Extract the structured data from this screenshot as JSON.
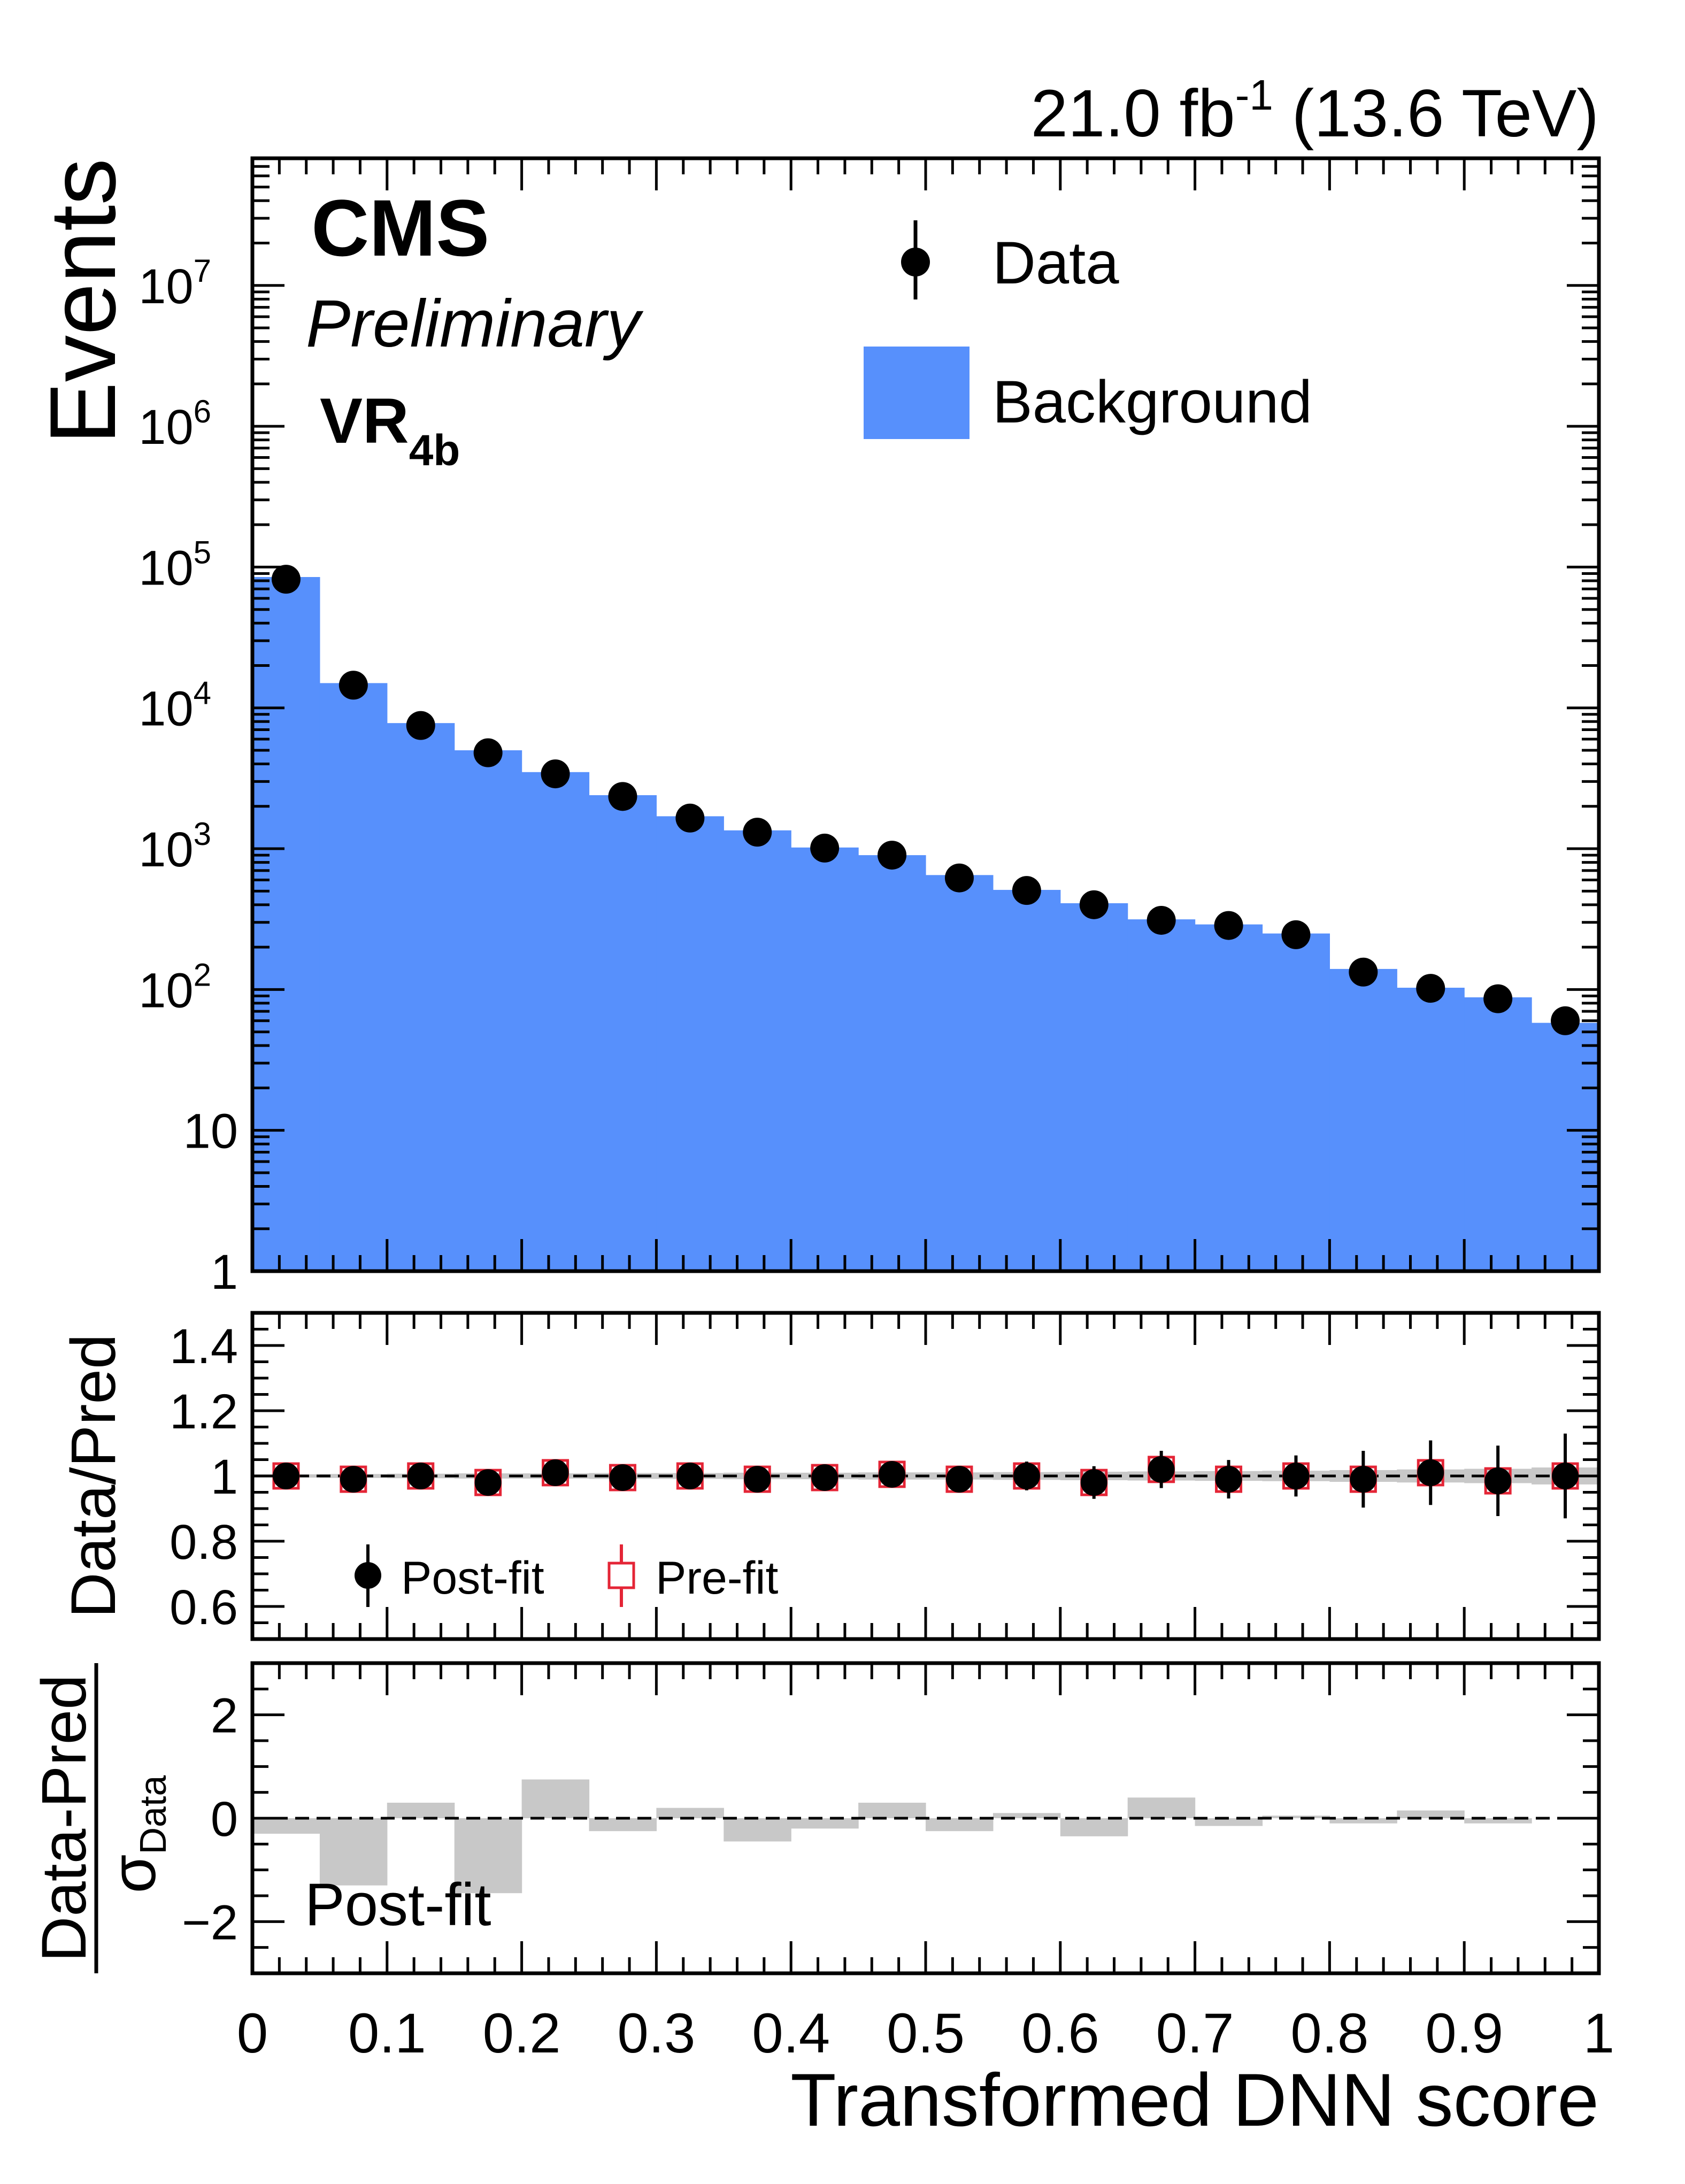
{
  "header": {
    "lumi_value": "21.0 fb",
    "lumi_exponent": "-1",
    "energy": " (13.6 TeV)"
  },
  "labels": {
    "experiment": "CMS",
    "status": "Preliminary",
    "region_main": "VR",
    "region_sub": "4b"
  },
  "colors": {
    "background_fill": "#5790fc",
    "data_marker": "#000000",
    "prefit_marker": "#e42536",
    "uncertainty_band": "#c8c8c8",
    "pull_fill": "#c8c8c8"
  },
  "chart_data": [
    {
      "panel": "main",
      "type": "bar",
      "ylabel": "Events",
      "yscale": "log",
      "xlim": [
        0,
        1
      ],
      "ylim": [
        1,
        80000000
      ],
      "ytick_labels": [
        {
          "value": 1,
          "mantissa": "1",
          "exp": ""
        },
        {
          "value": 10,
          "mantissa": "10",
          "exp": ""
        },
        {
          "value": 100,
          "mantissa": "10",
          "exp": "2"
        },
        {
          "value": 1000,
          "mantissa": "10",
          "exp": "3"
        },
        {
          "value": 10000,
          "mantissa": "10",
          "exp": "4"
        },
        {
          "value": 100000,
          "mantissa": "10",
          "exp": "5"
        },
        {
          "value": 1000000,
          "mantissa": "10",
          "exp": "6"
        },
        {
          "value": 10000000,
          "mantissa": "10",
          "exp": "7"
        }
      ],
      "bin_edges": [
        0,
        0.05,
        0.1,
        0.15,
        0.2,
        0.25,
        0.3,
        0.35,
        0.4,
        0.45,
        0.5,
        0.55,
        0.6,
        0.65,
        0.7,
        0.75,
        0.8,
        0.85,
        0.9,
        0.95,
        1.0
      ],
      "series": [
        {
          "name": "Background",
          "kind": "histogram",
          "values": [
            85000,
            15000,
            7800,
            5000,
            3500,
            2400,
            1700,
            1350,
            1020,
            900,
            650,
            510,
            410,
            315,
            290,
            250,
            140,
            103,
            88,
            58
          ]
        },
        {
          "name": "Data",
          "kind": "points",
          "x": [
            0.025,
            0.075,
            0.125,
            0.175,
            0.225,
            0.275,
            0.325,
            0.375,
            0.425,
            0.475,
            0.525,
            0.575,
            0.625,
            0.675,
            0.725,
            0.775,
            0.825,
            0.875,
            0.925,
            0.975
          ],
          "values": [
            82000,
            14500,
            7500,
            4800,
            3400,
            2350,
            1650,
            1310,
            1010,
            900,
            620,
            505,
            400,
            310,
            285,
            245,
            133,
            102,
            86,
            60
          ]
        }
      ],
      "legend": {
        "placement": "top-right",
        "entries": [
          "Data",
          "Background"
        ]
      }
    },
    {
      "panel": "ratio",
      "type": "scatter",
      "ylabel": "Data/Pred",
      "xlim": [
        0,
        1
      ],
      "ylim": [
        0.5,
        1.5
      ],
      "yticks": [
        0.6,
        0.8,
        1,
        1.2,
        1.4
      ],
      "ytick_labels": [
        "0.6",
        "0.8",
        "1",
        "1.2",
        "1.4"
      ],
      "reference_line": 1,
      "x": [
        0.025,
        0.075,
        0.125,
        0.175,
        0.225,
        0.275,
        0.325,
        0.375,
        0.425,
        0.475,
        0.525,
        0.575,
        0.625,
        0.675,
        0.725,
        0.775,
        0.825,
        0.875,
        0.925,
        0.975
      ],
      "band_halfwidth": [
        0.005,
        0.006,
        0.007,
        0.008,
        0.008,
        0.009,
        0.009,
        0.01,
        0.01,
        0.011,
        0.011,
        0.012,
        0.013,
        0.014,
        0.015,
        0.016,
        0.018,
        0.02,
        0.022,
        0.026
      ],
      "series": [
        {
          "name": "Post-fit",
          "values": [
            1.0,
            0.99,
            1.0,
            0.98,
            1.01,
            0.995,
            1.0,
            0.99,
            0.995,
            1.005,
            0.99,
            1.0,
            0.98,
            1.02,
            0.99,
            1.0,
            0.99,
            1.01,
            0.985,
            1.0
          ],
          "errors": [
            0.003,
            0.008,
            0.011,
            0.014,
            0.017,
            0.02,
            0.025,
            0.027,
            0.031,
            0.033,
            0.04,
            0.044,
            0.05,
            0.057,
            0.059,
            0.063,
            0.087,
            0.099,
            0.108,
            0.13
          ]
        },
        {
          "name": "Pre-fit",
          "values": [
            1.0,
            0.99,
            1.0,
            0.98,
            1.01,
            0.995,
            1.0,
            0.99,
            0.995,
            1.005,
            0.99,
            1.0,
            0.98,
            1.02,
            0.99,
            1.0,
            0.99,
            1.01,
            0.985,
            1.0
          ]
        }
      ],
      "legend": {
        "placement": "bottom-left",
        "entries": [
          "Post-fit",
          "Pre-fit"
        ]
      }
    },
    {
      "panel": "pull",
      "type": "bar",
      "ylabel_top": "Data-Pred",
      "ylabel_bottom_symbol": "σ",
      "ylabel_bottom_sub": "Data",
      "annotation": "Post-fit",
      "xlabel": "Transformed DNN score",
      "xlim": [
        0,
        1
      ],
      "ylim": [
        -3,
        3
      ],
      "yticks": [
        -2,
        0,
        2
      ],
      "ytick_labels": [
        "−2",
        "0",
        "2"
      ],
      "xticks": [
        0,
        0.1,
        0.2,
        0.3,
        0.4,
        0.5,
        0.6,
        0.7,
        0.8,
        0.9,
        1
      ],
      "xtick_labels": [
        "0",
        "0.1",
        "0.2",
        "0.3",
        "0.4",
        "0.5",
        "0.6",
        "0.7",
        "0.8",
        "0.9",
        "1"
      ],
      "reference_line": 0,
      "bin_edges": [
        0,
        0.05,
        0.1,
        0.15,
        0.2,
        0.25,
        0.3,
        0.35,
        0.4,
        0.45,
        0.5,
        0.55,
        0.6,
        0.65,
        0.7,
        0.75,
        0.8,
        0.85,
        0.9,
        0.95,
        1.0
      ],
      "values": [
        -0.3,
        -1.3,
        0.3,
        -1.45,
        0.75,
        -0.25,
        0.2,
        -0.45,
        -0.2,
        0.3,
        -0.25,
        0.1,
        -0.35,
        0.4,
        -0.15,
        0.05,
        -0.1,
        0.15,
        -0.1,
        0.0
      ]
    }
  ]
}
